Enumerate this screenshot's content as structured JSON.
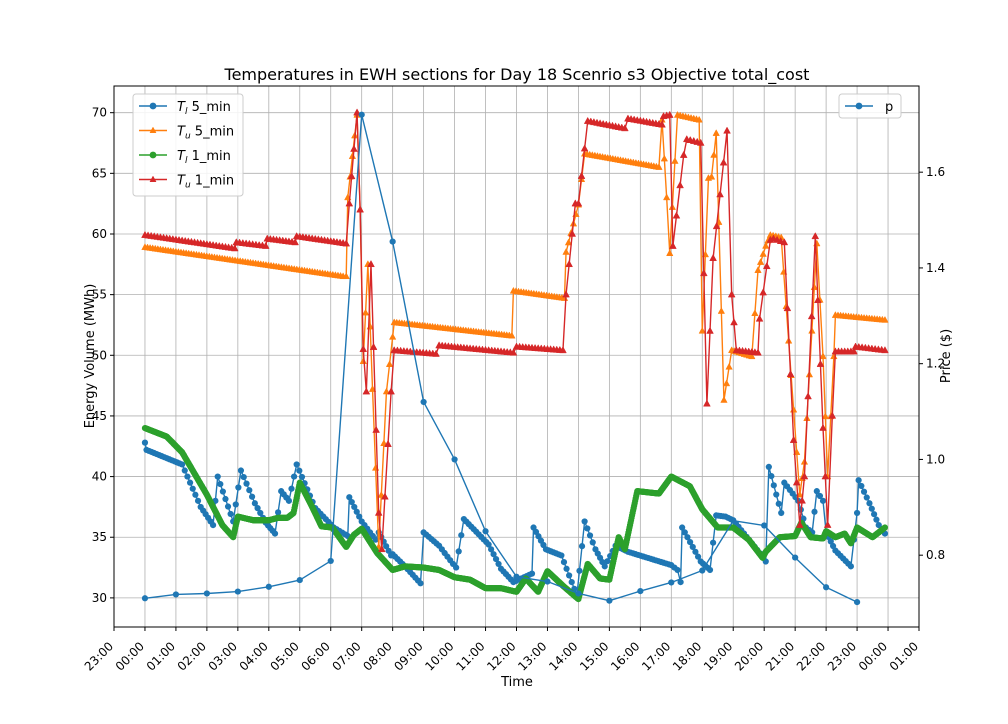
{
  "chart_data": {
    "type": "line",
    "title": "Temperatures in EWH sections for Day 18 Scenrio s3 Objective total_cost",
    "xlabel": "Time",
    "ylabel": "Energy Volume (MWh)",
    "y2label": "Price ($)",
    "xlim": [
      -1,
      25
    ],
    "ylim": [
      27.6,
      72.2
    ],
    "y2lim": [
      0.65,
      1.78
    ],
    "x_ticks": [
      "23:00",
      "00:00",
      "01:00",
      "02:00",
      "03:00",
      "04:00",
      "05:00",
      "06:00",
      "07:00",
      "08:00",
      "09:00",
      "10:00",
      "11:00",
      "12:00",
      "13:00",
      "14:00",
      "15:00",
      "16:00",
      "17:00",
      "18:00",
      "19:00",
      "20:00",
      "21:00",
      "22:00",
      "23:00",
      "00:00",
      "01:00"
    ],
    "x_tick_values": [
      -1,
      0,
      1,
      2,
      3,
      4,
      5,
      6,
      7,
      8,
      9,
      10,
      11,
      12,
      13,
      14,
      15,
      16,
      17,
      18,
      19,
      20,
      21,
      22,
      23,
      24,
      25
    ],
    "y_ticks": [
      30,
      35,
      40,
      45,
      50,
      55,
      60,
      65,
      70
    ],
    "y2_ticks": [
      0.8,
      1.0,
      1.2,
      1.4,
      1.6
    ],
    "grid": true,
    "legend_left": {
      "placement": "upper-left",
      "entries": [
        {
          "math": "T",
          "sub": "l",
          "suffix": " 5_min",
          "series": "Tl_5min"
        },
        {
          "math": "T",
          "sub": "u",
          "suffix": " 5_min",
          "series": "Tu_5min"
        },
        {
          "math": "T",
          "sub": "l",
          "suffix": " 1_min",
          "series": "Tl_1min"
        },
        {
          "math": "T",
          "sub": "u",
          "suffix": " 1_min",
          "series": "Tu_1min"
        }
      ]
    },
    "legend_right": {
      "placement": "upper-right",
      "entries": [
        {
          "label": "p",
          "series": "price"
        }
      ]
    },
    "series": [
      {
        "name": "Tl_5min",
        "color": "#1f77b4",
        "marker": "circle",
        "axis": "left",
        "step_h": 0.0833,
        "points": [
          [
            0,
            42.8
          ],
          [
            0.05,
            42.2
          ],
          [
            1.2,
            41.0
          ],
          [
            1.8,
            37.5
          ],
          [
            2.2,
            36.0
          ],
          [
            2.35,
            40.0
          ],
          [
            2.85,
            36.3
          ],
          [
            3.1,
            40.5
          ],
          [
            3.55,
            37.8
          ],
          [
            3.9,
            36.2
          ],
          [
            4.2,
            35.3
          ],
          [
            4.4,
            38.8
          ],
          [
            4.65,
            38.0
          ],
          [
            4.9,
            41.0
          ],
          [
            5.5,
            37.4
          ],
          [
            6.1,
            35.8
          ],
          [
            6.55,
            35.1
          ],
          [
            6.6,
            38.3
          ],
          [
            7.0,
            36.3
          ],
          [
            7.45,
            34.8
          ],
          [
            7.55,
            35.4
          ],
          [
            7.95,
            33.5
          ],
          [
            8.0,
            33.6
          ],
          [
            8.4,
            32.6
          ],
          [
            8.9,
            31.2
          ],
          [
            9.0,
            35.4
          ],
          [
            9.5,
            34.3
          ],
          [
            9.95,
            32.8
          ],
          [
            10.05,
            32.5
          ],
          [
            10.3,
            36.5
          ],
          [
            11.1,
            34.4
          ],
          [
            11.5,
            32.4
          ],
          [
            11.9,
            31.3
          ],
          [
            12.5,
            32.0
          ],
          [
            12.55,
            35.8
          ],
          [
            12.95,
            34.0
          ],
          [
            13.45,
            33.5
          ],
          [
            13.95,
            30.2
          ],
          [
            14.2,
            36.3
          ],
          [
            14.55,
            34.0
          ],
          [
            14.85,
            32.6
          ],
          [
            15.2,
            34.3
          ],
          [
            15.6,
            33.8
          ],
          [
            17.0,
            32.7
          ],
          [
            17.2,
            32.3
          ],
          [
            17.3,
            31.3
          ],
          [
            17.35,
            35.8
          ],
          [
            17.95,
            33.0
          ],
          [
            18.25,
            32.3
          ],
          [
            18.45,
            36.8
          ],
          [
            18.75,
            36.7
          ],
          [
            19.0,
            36.4
          ],
          [
            19.95,
            33.4
          ],
          [
            20.05,
            33.0
          ],
          [
            20.15,
            40.8
          ],
          [
            20.55,
            37.0
          ],
          [
            20.65,
            39.5
          ],
          [
            21.1,
            38.0
          ],
          [
            21.35,
            35.8
          ],
          [
            21.55,
            35.4
          ],
          [
            21.7,
            38.8
          ],
          [
            21.9,
            38.0
          ],
          [
            22.0,
            35.4
          ],
          [
            22.3,
            33.9
          ],
          [
            22.8,
            32.6
          ],
          [
            23.0,
            37.0
          ],
          [
            23.05,
            39.7
          ],
          [
            23.4,
            37.8
          ],
          [
            23.7,
            36.0
          ],
          [
            23.9,
            35.3
          ]
        ]
      },
      {
        "name": "Tu_5min",
        "color": "#ff7f0e",
        "marker": "triangle",
        "axis": "left",
        "step_h": 0.0833,
        "points": [
          [
            0,
            58.9
          ],
          [
            6.4,
            56.5
          ],
          [
            6.5,
            56.5
          ],
          [
            6.55,
            63.0
          ],
          [
            6.85,
            69.8
          ],
          [
            6.95,
            62.0
          ],
          [
            7.05,
            49.5
          ],
          [
            7.2,
            57.5
          ],
          [
            7.35,
            47.2
          ],
          [
            7.55,
            34.2
          ],
          [
            7.8,
            47.0
          ],
          [
            8.0,
            51.5
          ],
          [
            8.05,
            52.7
          ],
          [
            11.85,
            51.6
          ],
          [
            11.9,
            55.3
          ],
          [
            13.55,
            54.7
          ],
          [
            13.6,
            58.5
          ],
          [
            14.0,
            62.4
          ],
          [
            14.2,
            66.6
          ],
          [
            16.6,
            65.5
          ],
          [
            16.7,
            69.4
          ],
          [
            16.85,
            63.0
          ],
          [
            16.95,
            58.4
          ],
          [
            17.2,
            69.8
          ],
          [
            17.9,
            69.4
          ],
          [
            18.0,
            52.0
          ],
          [
            18.2,
            64.6
          ],
          [
            18.3,
            64.7
          ],
          [
            18.45,
            68.3
          ],
          [
            18.7,
            46.3
          ],
          [
            18.95,
            50.4
          ],
          [
            19.6,
            49.9
          ],
          [
            19.8,
            57.0
          ],
          [
            20.05,
            59.0
          ],
          [
            20.2,
            59.9
          ],
          [
            20.55,
            59.7
          ],
          [
            20.95,
            45.5
          ],
          [
            21.15,
            38.5
          ],
          [
            21.3,
            41.2
          ],
          [
            21.7,
            59.2
          ],
          [
            21.9,
            49.9
          ],
          [
            22.05,
            40.0
          ],
          [
            22.25,
            49.9
          ],
          [
            22.3,
            53.3
          ],
          [
            23.9,
            52.9
          ]
        ]
      },
      {
        "name": "Tl_1min",
        "color": "#2ca02c",
        "marker": "circle",
        "axis": "left",
        "step_h": 0.0167,
        "points": [
          [
            0,
            44.0
          ],
          [
            0.7,
            43.3
          ],
          [
            1.2,
            42.0
          ],
          [
            2.0,
            38.5
          ],
          [
            2.5,
            36.0
          ],
          [
            2.85,
            35.0
          ],
          [
            3.0,
            36.7
          ],
          [
            3.5,
            36.4
          ],
          [
            4.0,
            36.4
          ],
          [
            4.3,
            36.6
          ],
          [
            4.6,
            36.6
          ],
          [
            4.8,
            37.0
          ],
          [
            5.0,
            39.5
          ],
          [
            5.4,
            37.5
          ],
          [
            5.7,
            35.9
          ],
          [
            6.05,
            35.8
          ],
          [
            6.5,
            34.2
          ],
          [
            6.75,
            35.2
          ],
          [
            7.0,
            35.7
          ],
          [
            7.5,
            33.7
          ],
          [
            8.0,
            32.3
          ],
          [
            8.4,
            32.6
          ],
          [
            9.0,
            32.5
          ],
          [
            9.5,
            32.3
          ],
          [
            10.0,
            31.7
          ],
          [
            10.5,
            31.5
          ],
          [
            11.0,
            30.8
          ],
          [
            11.5,
            30.8
          ],
          [
            12.0,
            30.5
          ],
          [
            12.3,
            31.6
          ],
          [
            12.7,
            30.5
          ],
          [
            13.0,
            32.2
          ],
          [
            13.5,
            31.0
          ],
          [
            14.0,
            29.9
          ],
          [
            14.3,
            32.8
          ],
          [
            14.7,
            31.6
          ],
          [
            15.0,
            31.5
          ],
          [
            15.3,
            35.0
          ],
          [
            15.5,
            34.0
          ],
          [
            15.9,
            38.8
          ],
          [
            16.6,
            38.6
          ],
          [
            17.0,
            40.0
          ],
          [
            17.6,
            39.2
          ],
          [
            18.0,
            37.3
          ],
          [
            18.5,
            35.8
          ],
          [
            19.0,
            35.8
          ],
          [
            19.5,
            34.8
          ],
          [
            19.95,
            33.3
          ],
          [
            20.05,
            33.8
          ],
          [
            20.5,
            35.0
          ],
          [
            21.0,
            35.1
          ],
          [
            21.2,
            36.2
          ],
          [
            21.5,
            35.0
          ],
          [
            21.9,
            34.9
          ],
          [
            22.0,
            35.5
          ],
          [
            22.3,
            35.0
          ],
          [
            22.6,
            35.3
          ],
          [
            22.8,
            34.5
          ],
          [
            23.0,
            35.8
          ],
          [
            23.5,
            35.0
          ],
          [
            23.9,
            35.8
          ]
        ]
      },
      {
        "name": "Tu_1min",
        "color": "#d62728",
        "marker": "triangle",
        "axis": "left",
        "step_h": 0.1,
        "points": [
          [
            0,
            59.9
          ],
          [
            2.9,
            58.8
          ],
          [
            2.95,
            59.3
          ],
          [
            3.9,
            59.0
          ],
          [
            3.95,
            59.6
          ],
          [
            4.85,
            59.3
          ],
          [
            4.9,
            59.8
          ],
          [
            6.5,
            59.2
          ],
          [
            6.6,
            62.5
          ],
          [
            6.75,
            67.0
          ],
          [
            6.85,
            70.0
          ],
          [
            6.95,
            62.0
          ],
          [
            7.05,
            50.5
          ],
          [
            7.15,
            47.0
          ],
          [
            7.3,
            57.5
          ],
          [
            7.55,
            37.0
          ],
          [
            7.65,
            34.0
          ],
          [
            7.95,
            47.0
          ],
          [
            8.05,
            50.4
          ],
          [
            9.4,
            50.1
          ],
          [
            9.5,
            50.8
          ],
          [
            11.9,
            50.2
          ],
          [
            12.0,
            50.7
          ],
          [
            13.5,
            50.4
          ],
          [
            13.6,
            55.0
          ],
          [
            13.9,
            62.5
          ],
          [
            14.0,
            62.5
          ],
          [
            14.3,
            69.3
          ],
          [
            15.5,
            68.7
          ],
          [
            15.6,
            69.5
          ],
          [
            16.7,
            69.0
          ],
          [
            16.75,
            69.7
          ],
          [
            16.95,
            69.8
          ],
          [
            17.05,
            59.0
          ],
          [
            17.4,
            66.5
          ],
          [
            17.5,
            67.8
          ],
          [
            17.95,
            67.5
          ],
          [
            18.15,
            46.0
          ],
          [
            18.35,
            58.0
          ],
          [
            18.8,
            68.5
          ],
          [
            18.95,
            55.0
          ],
          [
            19.1,
            50.4
          ],
          [
            19.8,
            50.2
          ],
          [
            19.85,
            53.0
          ],
          [
            20.2,
            59.5
          ],
          [
            20.3,
            59.6
          ],
          [
            20.65,
            59.3
          ],
          [
            20.95,
            43.0
          ],
          [
            21.15,
            36.0
          ],
          [
            21.3,
            40.0
          ],
          [
            21.65,
            59.8
          ],
          [
            21.9,
            44.0
          ],
          [
            22.05,
            36.0
          ],
          [
            22.2,
            45.0
          ],
          [
            22.3,
            50.3
          ],
          [
            22.9,
            50.3
          ],
          [
            22.95,
            50.7
          ],
          [
            23.9,
            50.4
          ]
        ]
      },
      {
        "name": "price",
        "color": "#1f77b4",
        "marker": "circle",
        "axis": "right",
        "step_h": 0,
        "points": [
          [
            0,
            0.71
          ],
          [
            1,
            0.718
          ],
          [
            2,
            0.72
          ],
          [
            3,
            0.724
          ],
          [
            4,
            0.734
          ],
          [
            5,
            0.748
          ],
          [
            6,
            0.788
          ],
          [
            7,
            1.72
          ],
          [
            8,
            1.455
          ],
          [
            9,
            1.12
          ],
          [
            10,
            1.0
          ],
          [
            11,
            0.85
          ],
          [
            12,
            0.755
          ],
          [
            13,
            0.745
          ],
          [
            14,
            0.72
          ],
          [
            15,
            0.705
          ],
          [
            16,
            0.725
          ],
          [
            17,
            0.743
          ],
          [
            18,
            0.768
          ],
          [
            19,
            0.872
          ],
          [
            20,
            0.862
          ],
          [
            21,
            0.795
          ],
          [
            22,
            0.733
          ],
          [
            23,
            0.702
          ]
        ]
      }
    ]
  }
}
